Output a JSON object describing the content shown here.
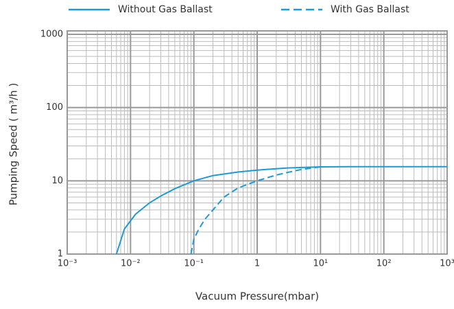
{
  "chart_data": {
    "type": "line",
    "xlabel": "Vacuum Pressure(mbar)",
    "ylabel": "Pumping Speed ( m³/h )",
    "xscale": "log",
    "yscale": "log",
    "grid": true,
    "legend": "top",
    "xlim": [
      0.001,
      1000
    ],
    "ylim": [
      1,
      1000
    ],
    "xticks": [
      {
        "value": 0.001,
        "label": "10⁻³"
      },
      {
        "value": 0.01,
        "label": "10⁻²"
      },
      {
        "value": 0.1,
        "label": "10⁻¹"
      },
      1,
      {
        "value": 10,
        "label": "10¹"
      },
      {
        "value": 100,
        "label": "10²"
      },
      {
        "value": 1000,
        "label": "10³"
      }
    ],
    "yticks": [
      1,
      10,
      100,
      1000
    ],
    "series": [
      {
        "name": "Without Gas Ballast",
        "color": "#1a9ad6",
        "line_style": "solid",
        "x": [
          0.006,
          0.008,
          0.012,
          0.02,
          0.03,
          0.05,
          0.1,
          0.2,
          0.5,
          1,
          3,
          10,
          30,
          100,
          1000
        ],
        "values": [
          1,
          2.2,
          3.5,
          5,
          6.2,
          7.8,
          10,
          11.8,
          13.2,
          14,
          15,
          15.5,
          15.6,
          15.6,
          15.6
        ]
      },
      {
        "name": "With Gas Ballast",
        "color": "#1a9ad6",
        "line_style": "dashed",
        "x": [
          0.09,
          0.1,
          0.12,
          0.15,
          0.2,
          0.3,
          0.5,
          1,
          2,
          3,
          5,
          10
        ],
        "values": [
          1,
          1.6,
          2.2,
          3,
          4,
          6,
          8,
          10,
          12,
          13,
          14.3,
          15.5
        ]
      }
    ]
  }
}
